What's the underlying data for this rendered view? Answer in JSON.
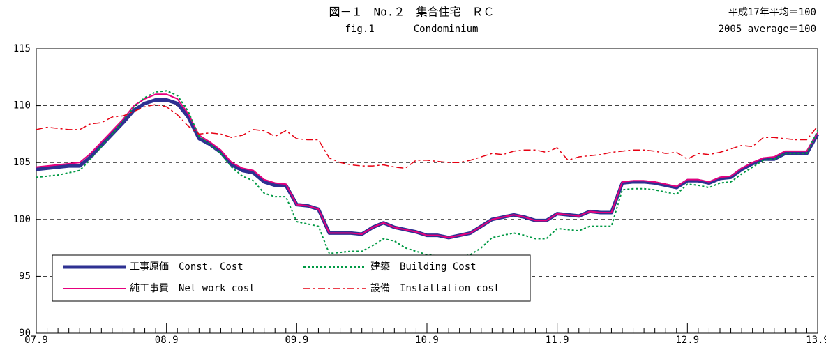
{
  "chart_data": {
    "type": "line",
    "title": "図－１　No.２　集合住宅　ＲＣ",
    "subtitle": "fig.1　　　　Condominium",
    "annotations": [
      "平成17年平均＝100",
      "2005 average＝100"
    ],
    "categories": [
      "07.9",
      null,
      null,
      null,
      null,
      null,
      null,
      null,
      null,
      null,
      null,
      null,
      "08.9",
      null,
      null,
      null,
      null,
      null,
      null,
      null,
      null,
      null,
      null,
      null,
      "09.9",
      null,
      null,
      null,
      null,
      null,
      null,
      null,
      null,
      null,
      null,
      null,
      "10.9",
      null,
      null,
      null,
      null,
      null,
      null,
      null,
      null,
      null,
      null,
      null,
      "11.9",
      null,
      null,
      null,
      null,
      null,
      null,
      null,
      null,
      null,
      null,
      null,
      "12.9",
      null,
      null,
      null,
      null,
      null,
      null,
      null,
      null,
      null,
      null,
      null,
      "13.9"
    ],
    "series": [
      {
        "name": "工事原価　Const. Cost",
        "color": "#2e3192",
        "style": "solid-thick",
        "values": [
          104.4,
          104.5,
          104.6,
          104.7,
          104.7,
          105.5,
          106.5,
          107.5,
          108.5,
          109.6,
          110.2,
          110.5,
          110.5,
          110.2,
          109.0,
          107.1,
          106.6,
          105.9,
          104.8,
          104.3,
          104.1,
          103.3,
          103.0,
          103.0,
          101.3,
          101.2,
          100.9,
          98.8,
          98.8,
          98.8,
          98.7,
          99.3,
          99.7,
          99.3,
          99.1,
          98.9,
          98.6,
          98.6,
          98.4,
          98.6,
          98.8,
          99.4,
          100.0,
          100.2,
          100.4,
          100.2,
          99.9,
          99.9,
          100.5,
          100.4,
          100.3,
          100.7,
          100.6,
          100.6,
          103.2,
          103.3,
          103.3,
          103.2,
          103.0,
          102.8,
          103.4,
          103.4,
          103.2,
          103.6,
          103.7,
          104.4,
          104.9,
          105.3,
          105.3,
          105.8,
          105.8,
          105.8,
          107.5
        ]
      },
      {
        "name": "建築　Building Cost",
        "color": "#009944",
        "style": "dotted",
        "values": [
          103.7,
          103.8,
          103.9,
          104.1,
          104.3,
          105.3,
          106.4,
          107.5,
          108.7,
          109.9,
          110.7,
          111.2,
          111.3,
          110.9,
          109.5,
          107.3,
          106.6,
          105.8,
          104.6,
          103.8,
          103.4,
          102.3,
          102.0,
          102.0,
          99.8,
          99.6,
          99.4,
          97.0,
          97.1,
          97.2,
          97.2,
          97.7,
          98.3,
          98.1,
          97.5,
          97.2,
          96.9,
          96.8,
          96.5,
          96.7,
          96.9,
          97.5,
          98.4,
          98.6,
          98.8,
          98.6,
          98.3,
          98.3,
          99.2,
          99.1,
          99.0,
          99.4,
          99.4,
          99.4,
          102.6,
          102.7,
          102.7,
          102.6,
          102.4,
          102.2,
          103.1,
          103.0,
          102.8,
          103.2,
          103.3,
          104.0,
          104.6,
          105.2,
          105.3,
          105.8,
          105.8,
          105.8,
          107.8
        ]
      },
      {
        "name": "純工事費　Net work cost",
        "color": "#e6007e",
        "style": "solid",
        "values": [
          104.6,
          104.7,
          104.8,
          104.9,
          105.0,
          105.8,
          106.8,
          107.8,
          108.8,
          110.0,
          110.6,
          111.0,
          111.0,
          110.6,
          109.3,
          107.4,
          106.8,
          106.1,
          105.0,
          104.5,
          104.3,
          103.5,
          103.2,
          103.1,
          101.3,
          101.2,
          100.9,
          98.8,
          98.8,
          98.8,
          98.7,
          99.3,
          99.7,
          99.3,
          99.1,
          98.9,
          98.6,
          98.6,
          98.4,
          98.6,
          98.8,
          99.4,
          100.0,
          100.2,
          100.4,
          100.2,
          99.9,
          99.9,
          100.5,
          100.4,
          100.3,
          100.7,
          100.6,
          100.6,
          103.3,
          103.4,
          103.4,
          103.3,
          103.1,
          102.9,
          103.5,
          103.5,
          103.3,
          103.7,
          103.8,
          104.5,
          105.0,
          105.4,
          105.5,
          106.0,
          106.0,
          106.0,
          107.6
        ]
      },
      {
        "name": "設備　Installation cost",
        "color": "#e60012",
        "style": "dashdot",
        "values": [
          107.9,
          108.1,
          108.0,
          107.9,
          107.9,
          108.4,
          108.5,
          109.0,
          109.1,
          109.5,
          109.9,
          110.1,
          109.9,
          109.2,
          108.2,
          107.5,
          107.6,
          107.5,
          107.2,
          107.4,
          107.9,
          107.8,
          107.3,
          107.8,
          107.1,
          107.0,
          107.0,
          105.4,
          105.0,
          104.8,
          104.7,
          104.7,
          104.8,
          104.6,
          104.5,
          105.2,
          105.2,
          105.1,
          105.0,
          105.0,
          105.2,
          105.5,
          105.8,
          105.7,
          106.0,
          106.1,
          106.1,
          105.9,
          106.3,
          105.2,
          105.5,
          105.6,
          105.7,
          105.9,
          106.0,
          106.1,
          106.1,
          106.0,
          105.8,
          105.9,
          105.3,
          105.8,
          105.7,
          105.9,
          106.2,
          106.5,
          106.4,
          107.2,
          107.2,
          107.1,
          107.0,
          107.0,
          108.2
        ]
      }
    ],
    "ylim": [
      90,
      115
    ],
    "yticks": [
      90,
      95,
      100,
      105,
      110,
      115
    ],
    "grid": true,
    "legend": "bottom-left"
  }
}
